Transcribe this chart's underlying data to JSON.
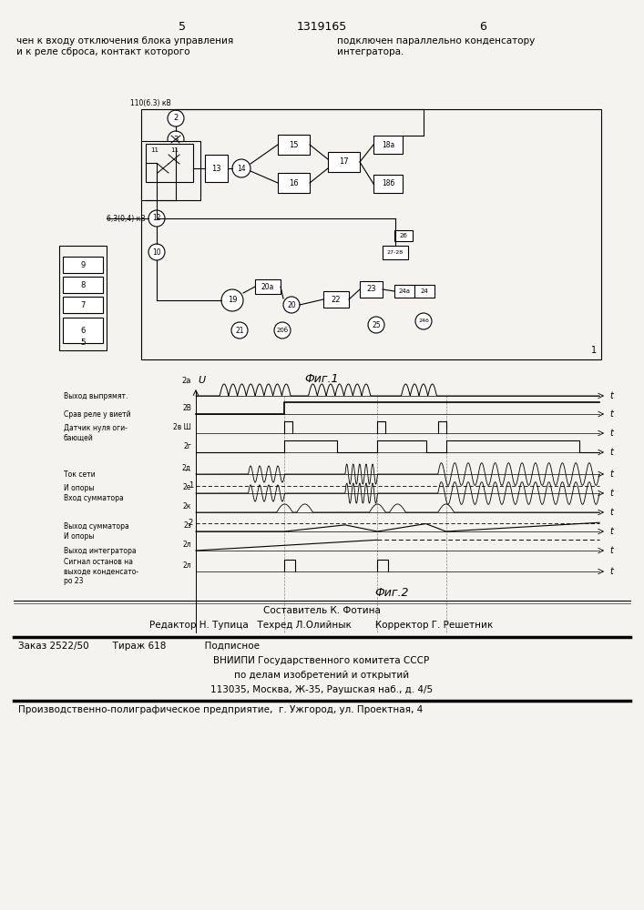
{
  "bg_color": "#f5f3ef",
  "page_num_left": "5",
  "page_num_center": "1319165",
  "page_num_right": "6",
  "text_top_left": "чен к входу отключения блока управления\nи к реле сброса, контакт которого",
  "text_top_right": "подключен параллельно конденсатору\nинтегратора.",
  "fig1_caption": "Фиг.1",
  "fig2_caption": "Фиг.2",
  "editor_line": "Составитель К. Фотина",
  "editor_line2": "Редактор Н. Тупица   Техред Л.Олийнык        Корректор Г. Решетник",
  "order_line": "Заказ 2522/50        Тираж 618             Подписное",
  "org_line1": "ВНИИПИ Государственного комитета СССР",
  "org_line2": "по делам изобретений и открытий",
  "org_line3": "113035, Москва, Ж-35, Раушская наб., д. 4/5",
  "print_line": "Производственно-полиграфическое предприятие,  г. Ужгород, ул. Проектная, 4"
}
